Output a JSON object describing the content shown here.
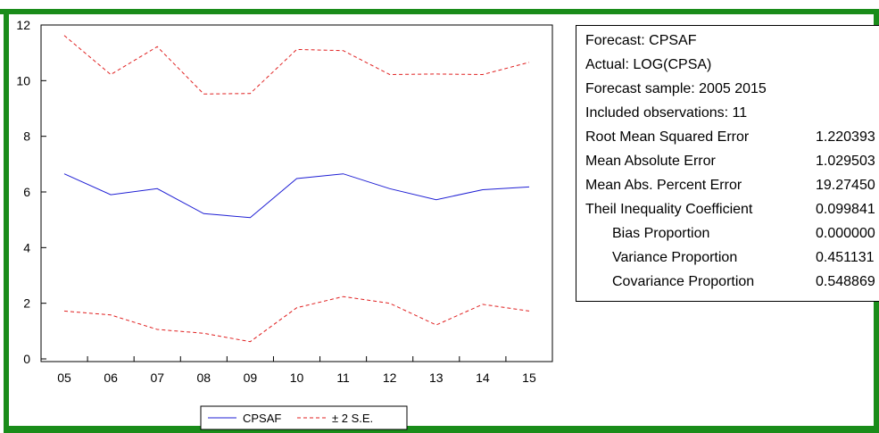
{
  "frame": {
    "border_color": "#1a8c1a"
  },
  "chart_data": {
    "type": "line",
    "x": [
      "05",
      "06",
      "07",
      "08",
      "09",
      "10",
      "11",
      "12",
      "13",
      "14",
      "15"
    ],
    "yticks": [
      "0",
      "2",
      "4",
      "6",
      "8",
      "10",
      "12"
    ],
    "ylim": [
      0,
      12
    ],
    "grid": false,
    "legend": "bottom",
    "series": [
      {
        "name": "CPSAF",
        "color": "#1f1fd4",
        "dash": "solid",
        "values": [
          6.65,
          5.9,
          6.12,
          5.22,
          5.08,
          6.48,
          6.65,
          6.12,
          5.72,
          6.08,
          6.18
        ]
      },
      {
        "name": "± 2 S.E.",
        "color": "#e02020",
        "dash": "dashed",
        "values": [
          11.62,
          10.22,
          11.22,
          9.52,
          9.54,
          11.12,
          11.08,
          10.22,
          10.24,
          10.22,
          10.66
        ]
      },
      {
        "name": "",
        "color": "#e02020",
        "dash": "dashed",
        "values": [
          1.72,
          1.58,
          1.06,
          0.92,
          0.62,
          1.84,
          2.24,
          2.0,
          1.22,
          1.96,
          1.72
        ]
      }
    ]
  },
  "stats": {
    "header": [
      "Forecast: CPSAF",
      "Actual: LOG(CPSA)",
      "Forecast sample: 2005 2015",
      "Included observations: 11"
    ],
    "rows": [
      {
        "label": "Root Mean Squared Error",
        "value": "1.220393",
        "indent": false
      },
      {
        "label": "Mean Absolute Error",
        "value": "1.029503",
        "indent": false
      },
      {
        "label": "Mean Abs. Percent Error",
        "value": "19.27450",
        "indent": false
      },
      {
        "label": "Theil Inequality Coefficient",
        "value": "0.099841",
        "indent": false
      },
      {
        "label": "Bias Proportion",
        "value": "0.000000",
        "indent": true
      },
      {
        "label": "Variance Proportion",
        "value": "0.451131",
        "indent": true
      },
      {
        "label": "Covariance Proportion",
        "value": "0.548869",
        "indent": true
      }
    ]
  }
}
